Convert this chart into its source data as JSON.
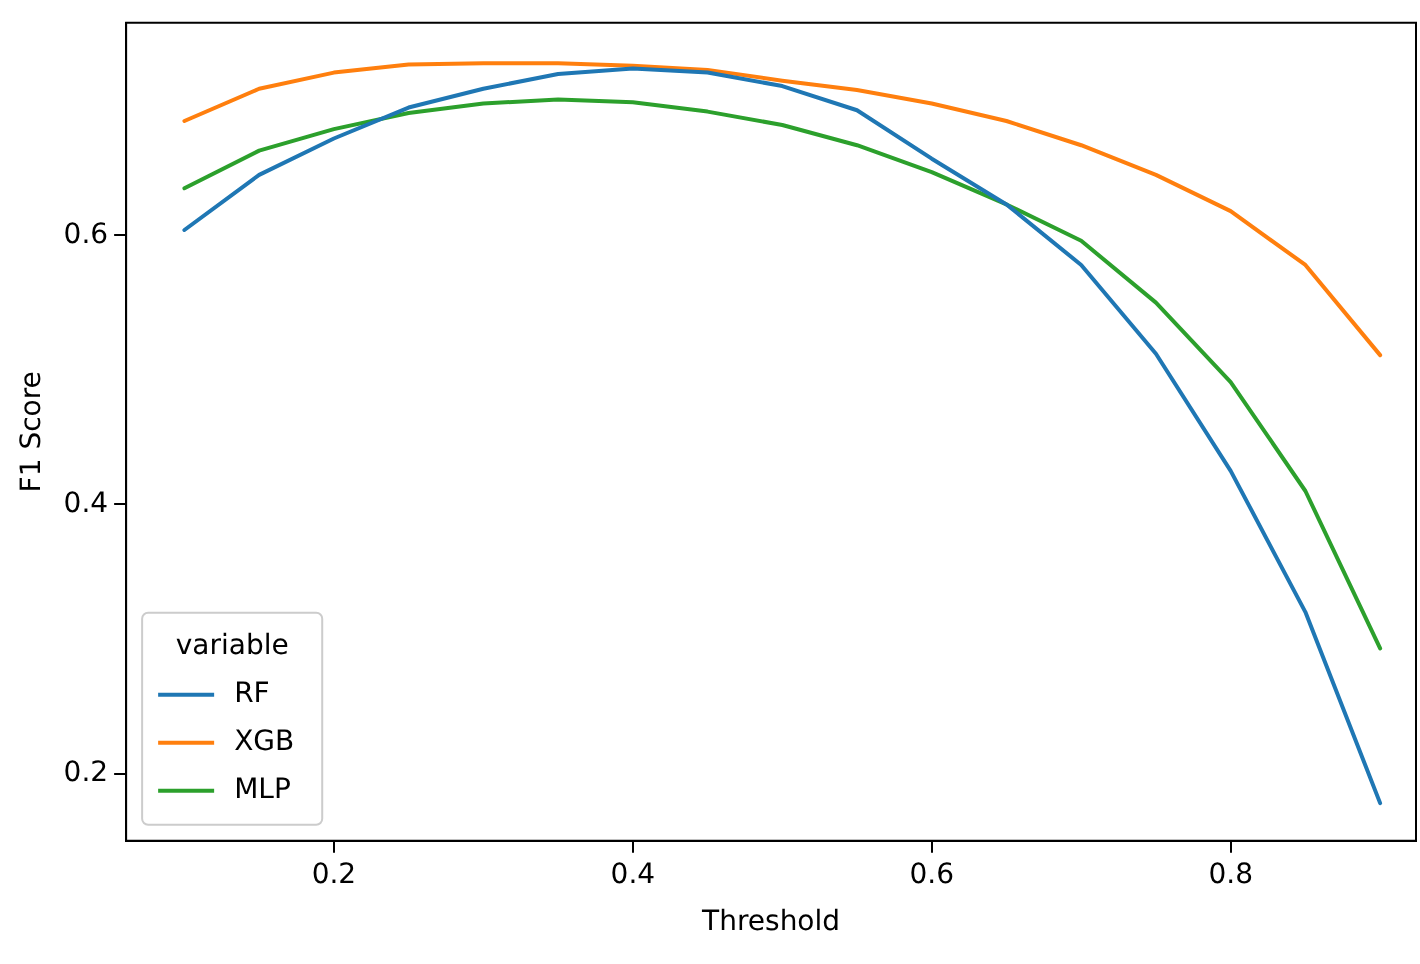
{
  "chart_data": {
    "type": "line",
    "xlabel": "Threshold",
    "ylabel": "F1 Score",
    "legend_title": "variable",
    "legend": "bottom left",
    "grid": false,
    "marker": "none",
    "line_style": "solid",
    "x": [
      0.1,
      0.15,
      0.2,
      0.25,
      0.3,
      0.35,
      0.4,
      0.45,
      0.5,
      0.55,
      0.6,
      0.65,
      0.7,
      0.75,
      0.8,
      0.85,
      0.9
    ],
    "xlim": [
      0.061,
      0.924
    ],
    "xticks": [
      {
        "value": 0.2,
        "label": "0.2"
      },
      {
        "value": 0.4,
        "label": "0.4"
      },
      {
        "value": 0.6,
        "label": "0.6"
      },
      {
        "value": 0.8,
        "label": "0.8"
      }
    ],
    "ylim": [
      0.15,
      0.758
    ],
    "yticks": [
      {
        "value": 0.2,
        "label": "0.2"
      },
      {
        "value": 0.4,
        "label": "0.4"
      },
      {
        "value": 0.6,
        "label": "0.6"
      }
    ],
    "series": [
      {
        "name": "RF",
        "color": "#1f77b4",
        "values": [
          0.604,
          0.645,
          0.672,
          0.695,
          0.709,
          0.72,
          0.724,
          0.721,
          0.711,
          0.693,
          0.657,
          0.623,
          0.578,
          0.512,
          0.425,
          0.32,
          0.178
        ]
      },
      {
        "name": "XGB",
        "color": "#ff7f0e",
        "values": [
          0.685,
          0.709,
          0.721,
          0.727,
          0.728,
          0.728,
          0.726,
          0.723,
          0.715,
          0.708,
          0.698,
          0.685,
          0.667,
          0.645,
          0.618,
          0.578,
          0.511
        ]
      },
      {
        "name": "MLP",
        "color": "#2ca02c",
        "values": [
          0.635,
          0.663,
          0.679,
          0.691,
          0.698,
          0.701,
          0.699,
          0.692,
          0.682,
          0.667,
          0.647,
          0.623,
          0.596,
          0.55,
          0.491,
          0.41,
          0.293
        ]
      }
    ]
  }
}
